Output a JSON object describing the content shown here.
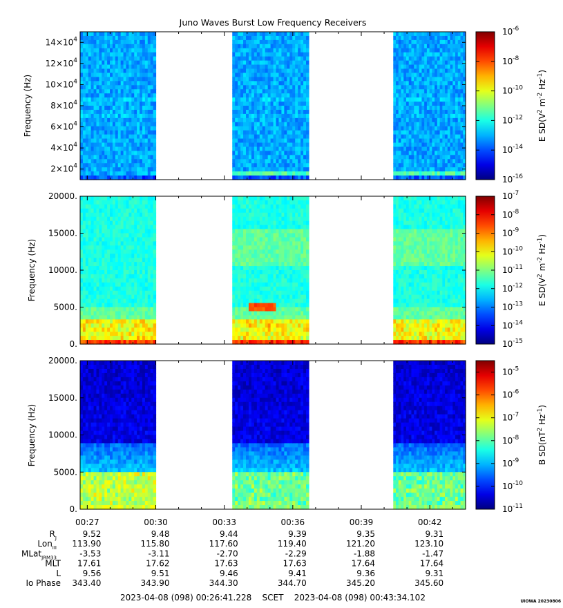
{
  "chart_data": {
    "type": "heatmap",
    "title": "Juno Waves Burst Low Frequency Receivers",
    "x_tick_labels": [
      "00:27",
      "00:30",
      "00:33",
      "00:36",
      "00:39",
      "00:42"
    ],
    "x_tick_minutes": [
      27,
      30,
      33,
      36,
      39,
      42
    ],
    "x_range_minutes": [
      26.687,
      43.568
    ],
    "data_segments_minutes": [
      [
        26.687,
        30.0
      ],
      [
        33.35,
        36.7
      ],
      [
        40.4,
        43.568
      ]
    ],
    "panels": [
      {
        "id": "e-high",
        "ylabel": "Frequency (Hz)",
        "ylim": [
          10000,
          150000
        ],
        "y_ticks": [
          {
            "value": 20000,
            "mant": "2×10",
            "exp": "4"
          },
          {
            "value": 40000,
            "mant": "4×10",
            "exp": "4"
          },
          {
            "value": 60000,
            "mant": "6×10",
            "exp": "4"
          },
          {
            "value": 80000,
            "mant": "8×10",
            "exp": "4"
          },
          {
            "value": 100000,
            "mant": "10×10",
            "exp": "4"
          },
          {
            "value": 120000,
            "mant": "12×10",
            "exp": "4"
          },
          {
            "value": 140000,
            "mant": "14×10",
            "exp": "4"
          }
        ],
        "colorbar": {
          "label_pre": "E SD(V",
          "label_mid": " m",
          "label_mid2": " Hz",
          "label_post": ")",
          "exp_a": "2",
          "exp_b": "-2",
          "exp_c": "-1",
          "log_range": [
            -16,
            -6
          ],
          "ticks": [
            {
              "log": -6,
              "exp": "-6"
            },
            {
              "log": -8,
              "exp": "-8"
            },
            {
              "log": -10,
              "exp": "-10"
            },
            {
              "log": -12,
              "exp": "-12"
            },
            {
              "log": -14,
              "exp": "-14"
            },
            {
              "log": -16,
              "exp": "-16"
            }
          ]
        }
      },
      {
        "id": "e-low",
        "ylabel": "Frequency (Hz)",
        "ylim": [
          0,
          20000
        ],
        "y_ticks": [
          {
            "value": 0,
            "label": "0."
          },
          {
            "value": 5000,
            "label": "5000."
          },
          {
            "value": 10000,
            "label": "10000."
          },
          {
            "value": 15000,
            "label": "15000."
          },
          {
            "value": 20000,
            "label": "20000."
          }
        ],
        "colorbar": {
          "label_pre": "E SD(V",
          "label_mid": " m",
          "label_mid2": " Hz",
          "label_post": ")",
          "exp_a": "2",
          "exp_b": "-2",
          "exp_c": "-1",
          "log_range": [
            -15,
            -7
          ],
          "ticks": [
            {
              "log": -7,
              "exp": "-7"
            },
            {
              "log": -8,
              "exp": "-8"
            },
            {
              "log": -9,
              "exp": "-9"
            },
            {
              "log": -10,
              "exp": "-10"
            },
            {
              "log": -11,
              "exp": "-11"
            },
            {
              "log": -12,
              "exp": "-12"
            },
            {
              "log": -13,
              "exp": "-13"
            },
            {
              "log": -14,
              "exp": "-14"
            },
            {
              "log": -15,
              "exp": "-15"
            }
          ]
        }
      },
      {
        "id": "b-low",
        "ylabel": "Frequency (Hz)",
        "ylim": [
          0,
          20000
        ],
        "y_ticks": [
          {
            "value": 0,
            "label": "0."
          },
          {
            "value": 5000,
            "label": "5000."
          },
          {
            "value": 10000,
            "label": "10000."
          },
          {
            "value": 15000,
            "label": "15000."
          },
          {
            "value": 20000,
            "label": "20000."
          }
        ],
        "colorbar": {
          "label_pre": "B SD(nT",
          "label_mid": " Hz",
          "label_mid2": "",
          "label_post": ")",
          "exp_a": "2",
          "exp_b": "-1",
          "exp_c": "",
          "log_range": [
            -11,
            -4.5
          ],
          "ticks": [
            {
              "log": -5,
              "exp": "-5"
            },
            {
              "log": -6,
              "exp": "-6"
            },
            {
              "log": -7,
              "exp": "-7"
            },
            {
              "log": -8,
              "exp": "-8"
            },
            {
              "log": -9,
              "exp": "-9"
            },
            {
              "log": -10,
              "exp": "-10"
            },
            {
              "log": -11,
              "exp": "-11"
            }
          ]
        }
      }
    ],
    "ephemeris": [
      {
        "label": "R",
        "sub": "J",
        "values": [
          "9.52",
          "9.48",
          "9.44",
          "9.39",
          "9.35",
          "9.31"
        ]
      },
      {
        "label": "Lon",
        "sub": "III",
        "values": [
          "113.90",
          "115.80",
          "117.60",
          "119.40",
          "121.20",
          "123.10"
        ]
      },
      {
        "label": "MLat",
        "sub": "JRM33",
        "values": [
          "-3.53",
          "-3.11",
          "-2.70",
          "-2.29",
          "-1.88",
          "-1.47"
        ]
      },
      {
        "label": "MLT",
        "sub": "",
        "values": [
          "17.61",
          "17.62",
          "17.63",
          "17.63",
          "17.64",
          "17.64"
        ]
      },
      {
        "label": "L",
        "sub": "",
        "values": [
          "9.56",
          "9.51",
          "9.46",
          "9.41",
          "9.36",
          "9.31"
        ]
      },
      {
        "label": "Io Phase",
        "sub": "",
        "values": [
          "343.40",
          "343.90",
          "344.30",
          "344.70",
          "345.20",
          "345.60"
        ]
      }
    ],
    "time_range_label": "2023-04-08 (098) 00:26:41.228    SCET    2023-04-08 (098) 00:43:34.102",
    "stamp": "UIOWA 20230806"
  }
}
